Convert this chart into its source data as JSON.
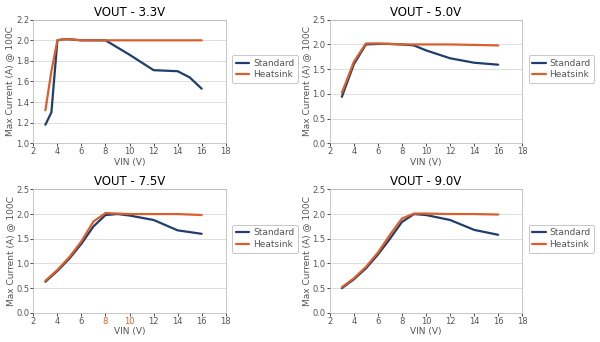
{
  "subplots": [
    {
      "title": "VOUT - 3.3V",
      "xlim": [
        2,
        18
      ],
      "ylim": [
        1.0,
        2.2
      ],
      "yticks": [
        1.0,
        1.2,
        1.4,
        1.6,
        1.8,
        2.0,
        2.2
      ],
      "xticks": [
        2,
        4,
        6,
        8,
        10,
        12,
        14,
        16,
        18
      ],
      "standard_x": [
        3,
        3.5,
        4,
        4.5,
        5,
        6,
        7,
        8,
        9,
        10,
        12,
        14,
        15,
        16
      ],
      "standard_y": [
        1.18,
        1.3,
        2.0,
        2.01,
        2.01,
        2.0,
        2.0,
        2.0,
        1.93,
        1.86,
        1.71,
        1.7,
        1.64,
        1.53
      ],
      "heatsink_x": [
        3,
        3.5,
        4,
        4.5,
        5,
        6,
        8,
        10,
        12,
        14,
        16
      ],
      "heatsink_y": [
        1.32,
        1.7,
        2.0,
        2.01,
        2.01,
        2.0,
        2.0,
        2.0,
        2.0,
        2.0,
        2.0
      ],
      "ylabel": "Max Current (A) @ 100C",
      "colored_xticks": {}
    },
    {
      "title": "VOUT - 5.0V",
      "xlim": [
        2,
        18
      ],
      "ylim": [
        0.0,
        2.5
      ],
      "yticks": [
        0.0,
        0.5,
        1.0,
        1.5,
        2.0,
        2.5
      ],
      "xticks": [
        2,
        4,
        6,
        8,
        10,
        12,
        14,
        16,
        18
      ],
      "standard_x": [
        3,
        4,
        5,
        6,
        7,
        8,
        9,
        10,
        12,
        14,
        16
      ],
      "standard_y": [
        0.94,
        1.6,
        2.0,
        2.01,
        2.01,
        2.0,
        1.98,
        1.88,
        1.72,
        1.63,
        1.59
      ],
      "heatsink_x": [
        3,
        4,
        5,
        6,
        7,
        8,
        9,
        10,
        12,
        14,
        16
      ],
      "heatsink_y": [
        1.02,
        1.65,
        2.02,
        2.02,
        2.01,
        2.0,
        2.0,
        2.0,
        2.0,
        1.99,
        1.98
      ],
      "ylabel": "Max Current (A) @ 100C",
      "colored_xticks": {}
    },
    {
      "title": "VOUT - 7.5V",
      "xlim": [
        2,
        18
      ],
      "ylim": [
        0.0,
        2.5
      ],
      "yticks": [
        0.0,
        0.5,
        1.0,
        1.5,
        2.0,
        2.5
      ],
      "xticks": [
        2,
        4,
        6,
        8,
        10,
        12,
        14,
        16,
        18
      ],
      "standard_x": [
        3,
        4,
        5,
        6,
        7,
        8,
        9,
        10,
        12,
        14,
        16
      ],
      "standard_y": [
        0.63,
        0.85,
        1.1,
        1.4,
        1.75,
        1.98,
        2.0,
        1.97,
        1.88,
        1.67,
        1.6
      ],
      "heatsink_x": [
        3,
        4,
        5,
        6,
        7,
        8,
        9,
        10,
        12,
        14,
        16
      ],
      "heatsink_y": [
        0.65,
        0.87,
        1.13,
        1.45,
        1.85,
        2.02,
        2.01,
        2.0,
        2.0,
        2.0,
        1.98
      ],
      "ylabel": "Max Current (A) @ 100C",
      "colored_xticks": {
        "8": "#d9602c",
        "10": "#d9602c"
      }
    },
    {
      "title": "VOUT - 9.0V",
      "xlim": [
        2,
        18
      ],
      "ylim": [
        0.0,
        2.5
      ],
      "yticks": [
        0.0,
        0.5,
        1.0,
        1.5,
        2.0,
        2.5
      ],
      "xticks": [
        2,
        4,
        6,
        8,
        10,
        12,
        14,
        16,
        18
      ],
      "standard_x": [
        3,
        4,
        5,
        6,
        7,
        8,
        9,
        10,
        12,
        14,
        16
      ],
      "standard_y": [
        0.5,
        0.68,
        0.9,
        1.18,
        1.5,
        1.84,
        2.0,
        1.98,
        1.88,
        1.68,
        1.58
      ],
      "heatsink_x": [
        3,
        4,
        5,
        6,
        7,
        8,
        9,
        10,
        12,
        14,
        16
      ],
      "heatsink_y": [
        0.52,
        0.7,
        0.93,
        1.22,
        1.58,
        1.91,
        2.01,
        2.01,
        2.0,
        2.0,
        1.99
      ],
      "ylabel": "Max Current (A) @ 100C",
      "colored_xticks": {}
    }
  ],
  "standard_color": "#1f3e6e",
  "heatsink_color": "#d9602c",
  "standard_label": "Standard",
  "heatsink_label": "Heatsink",
  "xlabel": "VIN (V)",
  "background_color": "#ffffff",
  "grid_color": "#d0d0d0",
  "line_width": 1.6,
  "title_fontsize": 8.5,
  "label_fontsize": 6.5,
  "tick_fontsize": 6,
  "legend_fontsize": 6.5,
  "spine_color": "#b0b0b0"
}
